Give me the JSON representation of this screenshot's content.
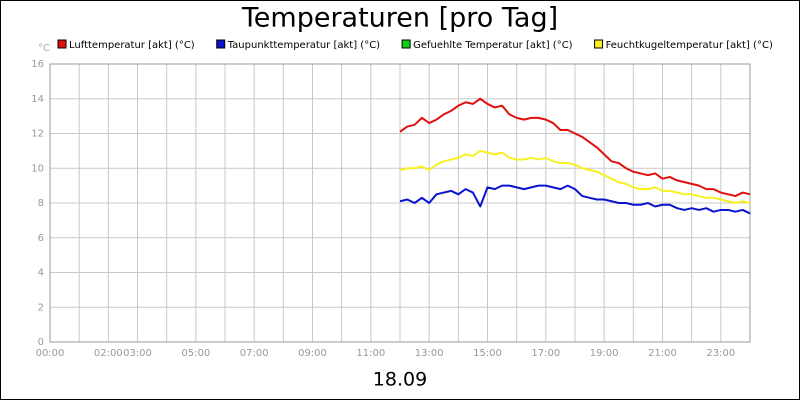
{
  "chart_data": {
    "type": "line",
    "title": "Temperaturen [pro Tag]",
    "ylabel": "°C",
    "xlabel": "18.09",
    "xlim": [
      0,
      24
    ],
    "xticks": [
      {
        "value": 0,
        "label": "00:00"
      },
      {
        "value": 2,
        "label": "02:00"
      },
      {
        "value": 3,
        "label": "03:00"
      },
      {
        "value": 5,
        "label": "05:00"
      },
      {
        "value": 7,
        "label": "07:00"
      },
      {
        "value": 9,
        "label": "09:00"
      },
      {
        "value": 11,
        "label": "11:00"
      },
      {
        "value": 13,
        "label": "13:00"
      },
      {
        "value": 15,
        "label": "15:00"
      },
      {
        "value": 17,
        "label": "17:00"
      },
      {
        "value": 19,
        "label": "19:00"
      },
      {
        "value": 21,
        "label": "21:00"
      },
      {
        "value": 23,
        "label": "23:00"
      }
    ],
    "x_minor_ticks": [
      1,
      4,
      6,
      8,
      10,
      12,
      14,
      16,
      18,
      20,
      22
    ],
    "ylim": [
      0,
      16
    ],
    "yticks": [
      0,
      2,
      4,
      6,
      8,
      10,
      12,
      14,
      16
    ],
    "grid": true,
    "legend": "top",
    "x": [
      12,
      12.25,
      12.5,
      12.75,
      13,
      13.25,
      13.5,
      13.75,
      14,
      14.25,
      14.5,
      14.75,
      15,
      15.25,
      15.5,
      15.75,
      16,
      16.25,
      16.5,
      16.75,
      17,
      17.25,
      17.5,
      17.75,
      18,
      18.25,
      18.5,
      18.75,
      19,
      19.25,
      19.5,
      19.75,
      20,
      20.25,
      20.5,
      20.75,
      21,
      21.25,
      21.5,
      21.75,
      22,
      22.25,
      22.5,
      22.75,
      23,
      23.25,
      23.5,
      23.75,
      24
    ],
    "series": [
      {
        "name": "Lufttemperatur [akt] (°C)",
        "color": "#e01010",
        "values": [
          12.1,
          12.4,
          12.5,
          12.9,
          12.6,
          12.8,
          13.1,
          13.3,
          13.6,
          13.8,
          13.7,
          14.0,
          13.7,
          13.5,
          13.6,
          13.1,
          12.9,
          12.8,
          12.9,
          12.9,
          12.8,
          12.6,
          12.2,
          12.2,
          12.0,
          11.8,
          11.5,
          11.2,
          10.8,
          10.4,
          10.3,
          10.0,
          9.8,
          9.7,
          9.6,
          9.7,
          9.4,
          9.5,
          9.3,
          9.2,
          9.1,
          9.0,
          8.8,
          8.8,
          8.6,
          8.5,
          8.4,
          8.6,
          8.5
        ]
      },
      {
        "name": "Taupunkttemperatur [akt] (°C)",
        "color": "#0a14d0",
        "values": [
          8.1,
          8.2,
          8.0,
          8.3,
          8.0,
          8.5,
          8.6,
          8.7,
          8.5,
          8.8,
          8.6,
          7.8,
          8.9,
          8.8,
          9.0,
          9.0,
          8.9,
          8.8,
          8.9,
          9.0,
          9.0,
          8.9,
          8.8,
          9.0,
          8.8,
          8.4,
          8.3,
          8.2,
          8.2,
          8.1,
          8.0,
          8.0,
          7.9,
          7.9,
          8.0,
          7.8,
          7.9,
          7.9,
          7.7,
          7.6,
          7.7,
          7.6,
          7.7,
          7.5,
          7.6,
          7.6,
          7.5,
          7.6,
          7.4
        ]
      },
      {
        "name": "Gefuehlte Temperatur [akt] (°C)",
        "color": "#10d010",
        "values": [
          null,
          null,
          null,
          null,
          null,
          null,
          null,
          null,
          null,
          null,
          null,
          null,
          null,
          null,
          null,
          null,
          null,
          null,
          null,
          null,
          null,
          null,
          null,
          null,
          null,
          null,
          null,
          null,
          null,
          null,
          null,
          null,
          null,
          null,
          null,
          null,
          null,
          null,
          null,
          null,
          null,
          null,
          null,
          null,
          null,
          null,
          null,
          null,
          null
        ]
      },
      {
        "name": "Feuchtkugeltemperatur [akt] (°C)",
        "color": "#f8f020",
        "values": [
          9.9,
          10.0,
          10.0,
          10.1,
          9.9,
          10.2,
          10.4,
          10.5,
          10.6,
          10.8,
          10.7,
          11.0,
          10.9,
          10.8,
          10.9,
          10.6,
          10.5,
          10.5,
          10.6,
          10.5,
          10.6,
          10.4,
          10.3,
          10.3,
          10.2,
          10.0,
          9.9,
          9.8,
          9.6,
          9.4,
          9.2,
          9.1,
          8.9,
          8.8,
          8.8,
          8.9,
          8.7,
          8.7,
          8.6,
          8.5,
          8.5,
          8.4,
          8.3,
          8.3,
          8.2,
          8.1,
          8.0,
          8.1,
          8.0
        ]
      }
    ]
  }
}
